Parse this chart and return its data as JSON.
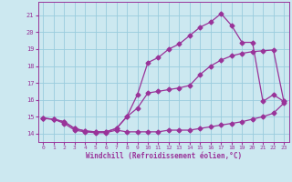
{
  "xlabel": "Windchill (Refroidissement éolien,°C)",
  "bg_color": "#cce8f0",
  "grid_color": "#99ccdd",
  "line_color": "#993399",
  "xlim": [
    -0.5,
    23.5
  ],
  "ylim": [
    13.5,
    21.8
  ],
  "xticks": [
    0,
    1,
    2,
    3,
    4,
    5,
    6,
    7,
    8,
    9,
    10,
    11,
    12,
    13,
    14,
    15,
    16,
    17,
    18,
    19,
    20,
    21,
    22,
    23
  ],
  "yticks": [
    14,
    15,
    16,
    17,
    18,
    19,
    20,
    21
  ],
  "curve1_x": [
    0,
    1,
    2,
    3,
    4,
    5,
    6,
    7,
    8,
    9,
    10,
    11,
    12,
    13,
    14,
    15,
    16,
    17,
    18,
    19,
    20,
    21,
    22,
    23
  ],
  "curve1_y": [
    14.9,
    14.85,
    14.6,
    14.2,
    14.1,
    14.05,
    14.05,
    14.2,
    14.1,
    14.1,
    14.1,
    14.1,
    14.2,
    14.2,
    14.2,
    14.3,
    14.4,
    14.5,
    14.6,
    14.7,
    14.85,
    15.0,
    15.2,
    15.8
  ],
  "curve2_x": [
    0,
    1,
    2,
    3,
    4,
    5,
    6,
    7,
    8,
    9,
    10,
    11,
    12,
    13,
    14,
    15,
    16,
    17,
    18,
    19,
    20,
    21,
    22,
    23
  ],
  "curve2_y": [
    14.9,
    14.85,
    14.7,
    14.3,
    14.15,
    14.1,
    14.1,
    14.3,
    15.0,
    15.5,
    16.4,
    16.5,
    16.6,
    16.7,
    16.85,
    17.5,
    18.0,
    18.35,
    18.6,
    18.75,
    18.85,
    18.9,
    18.95,
    15.9
  ],
  "curve3_x": [
    0,
    1,
    2,
    3,
    4,
    5,
    6,
    7,
    8,
    9,
    10,
    11,
    12,
    13,
    14,
    15,
    16,
    17,
    18,
    19,
    20,
    21,
    22,
    23
  ],
  "curve3_y": [
    14.9,
    14.85,
    14.7,
    14.3,
    14.15,
    14.1,
    14.1,
    14.3,
    15.0,
    16.3,
    18.2,
    18.5,
    19.0,
    19.3,
    19.8,
    20.3,
    20.6,
    21.1,
    20.4,
    19.4,
    19.4,
    15.9,
    16.3,
    15.9
  ]
}
